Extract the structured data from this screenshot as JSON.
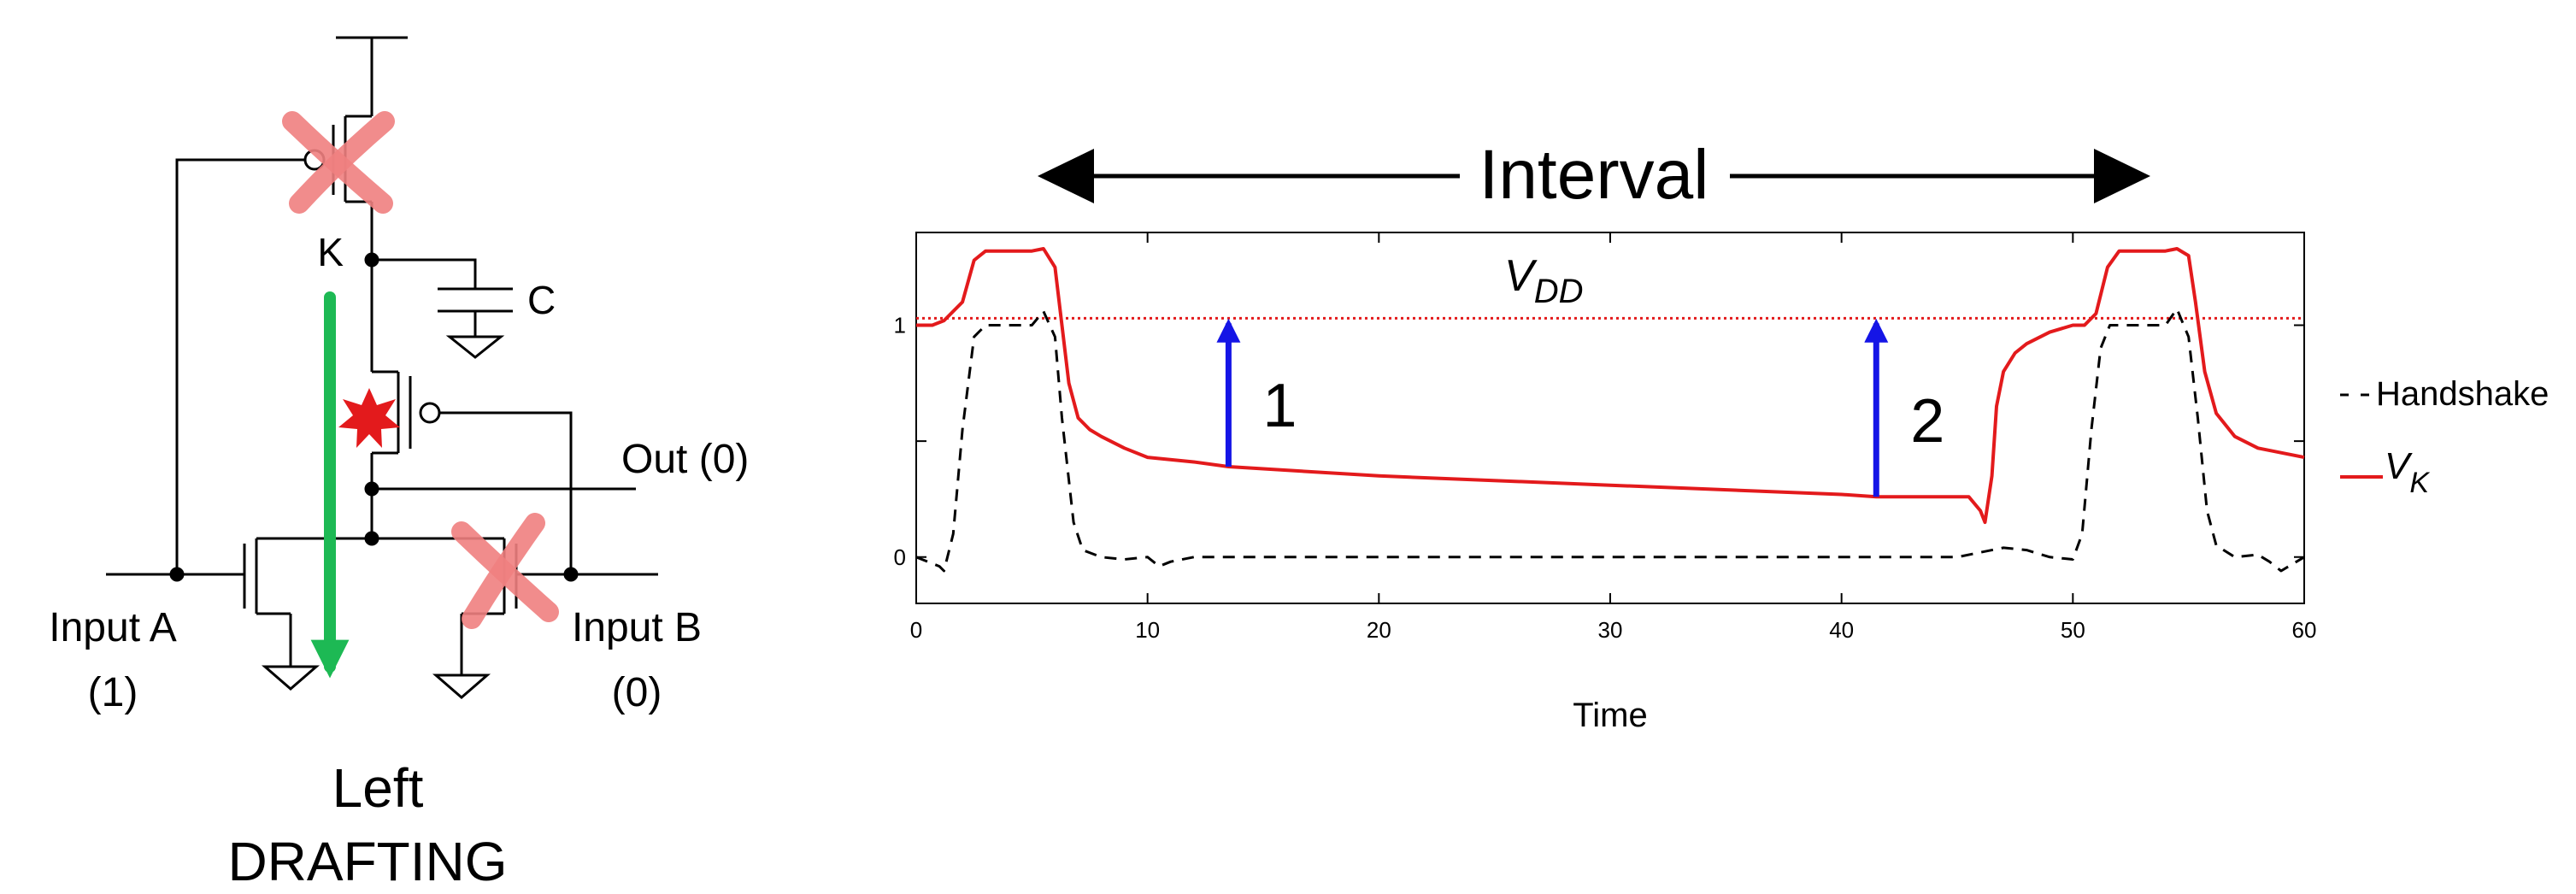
{
  "circuit": {
    "node_k": "K",
    "capacitor": "C",
    "output": "Out (0)",
    "input_a": "Input A",
    "input_a_value": "(1)",
    "input_b": "Input B",
    "input_b_value": "(0)",
    "caption_line1": "Left",
    "caption_line2": "DRAFTING",
    "disabled_transistors": [
      "pull-up pmos",
      "input-b nmos"
    ]
  },
  "interval_label": "Interval",
  "colors": {
    "vk": "#e31a1c",
    "handshake": "#000000",
    "arrows": "#1515e6",
    "discharge_path": "#1db954",
    "cross_marks": "#f08080"
  },
  "chart_data": {
    "type": "line",
    "xlabel": "Time",
    "ylabel": "",
    "xlim": [
      0,
      60
    ],
    "ylim": [
      -0.2,
      1.4
    ],
    "x_ticks": [
      "0",
      "10",
      "20",
      "30",
      "40",
      "50",
      "60"
    ],
    "y_ticks": [
      "0",
      "1"
    ],
    "vdd_label": "V",
    "vdd_subscript": "DD",
    "vdd_level": 1.03,
    "legend_position": "right",
    "series": [
      {
        "name": "Handshake",
        "style": "dashed",
        "color": "#000000",
        "x": [
          0,
          1,
          1.2,
          1.6,
          2,
          2.5,
          3,
          4,
          5,
          5.5,
          6,
          6.3,
          6.8,
          7.2,
          8,
          9,
          10,
          10.5,
          11,
          12,
          15,
          20,
          30,
          40,
          45,
          46,
          47,
          48,
          49,
          50,
          50.4,
          50.8,
          51.2,
          51.6,
          52,
          52.5,
          53,
          54,
          54.5,
          55,
          55.4,
          55.8,
          56.2,
          57,
          58,
          58.5,
          59,
          60
        ],
        "y": [
          0,
          -0.04,
          -0.06,
          0.1,
          0.55,
          0.95,
          1.0,
          1.0,
          1.0,
          1.06,
          0.95,
          0.6,
          0.15,
          0.03,
          0.0,
          -0.01,
          0.0,
          -0.04,
          -0.02,
          0.0,
          0.0,
          0.0,
          0.0,
          0.0,
          0.0,
          0.02,
          0.04,
          0.03,
          0.0,
          -0.01,
          0.1,
          0.55,
          0.9,
          1.0,
          1.0,
          1.0,
          1.0,
          1.0,
          1.07,
          0.95,
          0.6,
          0.2,
          0.05,
          0.0,
          0.01,
          -0.02,
          -0.06,
          0.0
        ]
      },
      {
        "name_main": "V",
        "name_sub": "K",
        "style": "solid",
        "color": "#e31a1c",
        "x": [
          0,
          0.7,
          1.2,
          2,
          2.5,
          3,
          4,
          5,
          5.5,
          6,
          6.3,
          6.6,
          7,
          7.5,
          8,
          9,
          10,
          12,
          13.5,
          20,
          30,
          40,
          41.5,
          45,
          45.5,
          46,
          46.2,
          46.5,
          46.7,
          47,
          47.5,
          48,
          49,
          50,
          50.5,
          51,
          51.5,
          52,
          53,
          54,
          54.5,
          55,
          55.3,
          55.7,
          56.2,
          57,
          58,
          59,
          60
        ],
        "y": [
          1.0,
          1.0,
          1.02,
          1.1,
          1.28,
          1.32,
          1.32,
          1.32,
          1.33,
          1.25,
          1.0,
          0.75,
          0.6,
          0.55,
          0.52,
          0.47,
          0.43,
          0.41,
          0.39,
          0.35,
          0.31,
          0.27,
          0.26,
          0.26,
          0.26,
          0.2,
          0.15,
          0.35,
          0.65,
          0.8,
          0.88,
          0.92,
          0.97,
          1.0,
          1.0,
          1.05,
          1.25,
          1.32,
          1.32,
          1.32,
          1.33,
          1.3,
          1.1,
          0.8,
          0.62,
          0.52,
          0.47,
          0.45,
          0.43
        ]
      }
    ],
    "annotations": [
      {
        "label": "1",
        "x": 13.5,
        "y_from": 0.39,
        "y_to": 1.03
      },
      {
        "label": "2",
        "x": 41.5,
        "y_from": 0.26,
        "y_to": 1.03
      }
    ]
  }
}
